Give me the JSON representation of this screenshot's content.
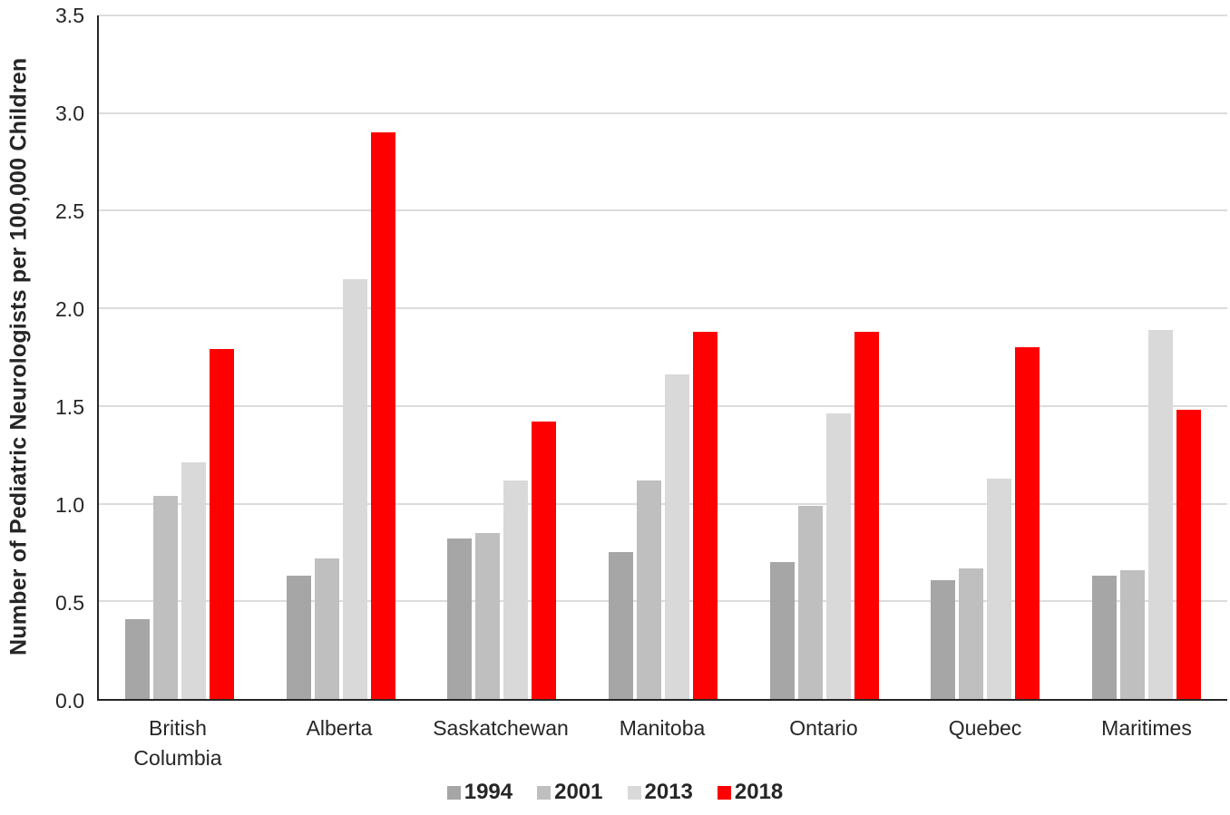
{
  "figure": {
    "background": "#ffffff",
    "text_color": "#262626",
    "axis_color": "#262626",
    "grid_color": "#dcdcdc"
  },
  "chart_data": {
    "type": "bar",
    "title": "",
    "xlabel": "",
    "ylabel": "Number of Pediatric Neurologists per 100,000 Children",
    "ylim": [
      0,
      3.5
    ],
    "ytick_step": 0.5,
    "yticks": [
      "0.0",
      "0.5",
      "1.0",
      "1.5",
      "2.0",
      "2.5",
      "3.0",
      "3.5"
    ],
    "grid": "horizontal",
    "legend_position": "bottom",
    "categories": [
      "British Columbia",
      "Alberta",
      "Saskatchewan",
      "Manitoba",
      "Ontario",
      "Quebec",
      "Maritimes"
    ],
    "series": [
      {
        "name": "1994",
        "color": "#a6a6a6",
        "values": [
          0.41,
          0.63,
          0.82,
          0.75,
          0.7,
          0.61,
          0.63
        ]
      },
      {
        "name": "2001",
        "color": "#bfbfbf",
        "values": [
          1.04,
          0.72,
          0.85,
          1.12,
          0.99,
          0.67,
          0.66
        ]
      },
      {
        "name": "2013",
        "color": "#d9d9d9",
        "values": [
          1.21,
          2.15,
          1.12,
          1.66,
          1.46,
          1.13,
          1.89
        ]
      },
      {
        "name": "2018",
        "color": "#ff0000",
        "values": [
          1.79,
          2.9,
          1.42,
          1.88,
          1.88,
          1.8,
          1.48
        ]
      }
    ]
  }
}
